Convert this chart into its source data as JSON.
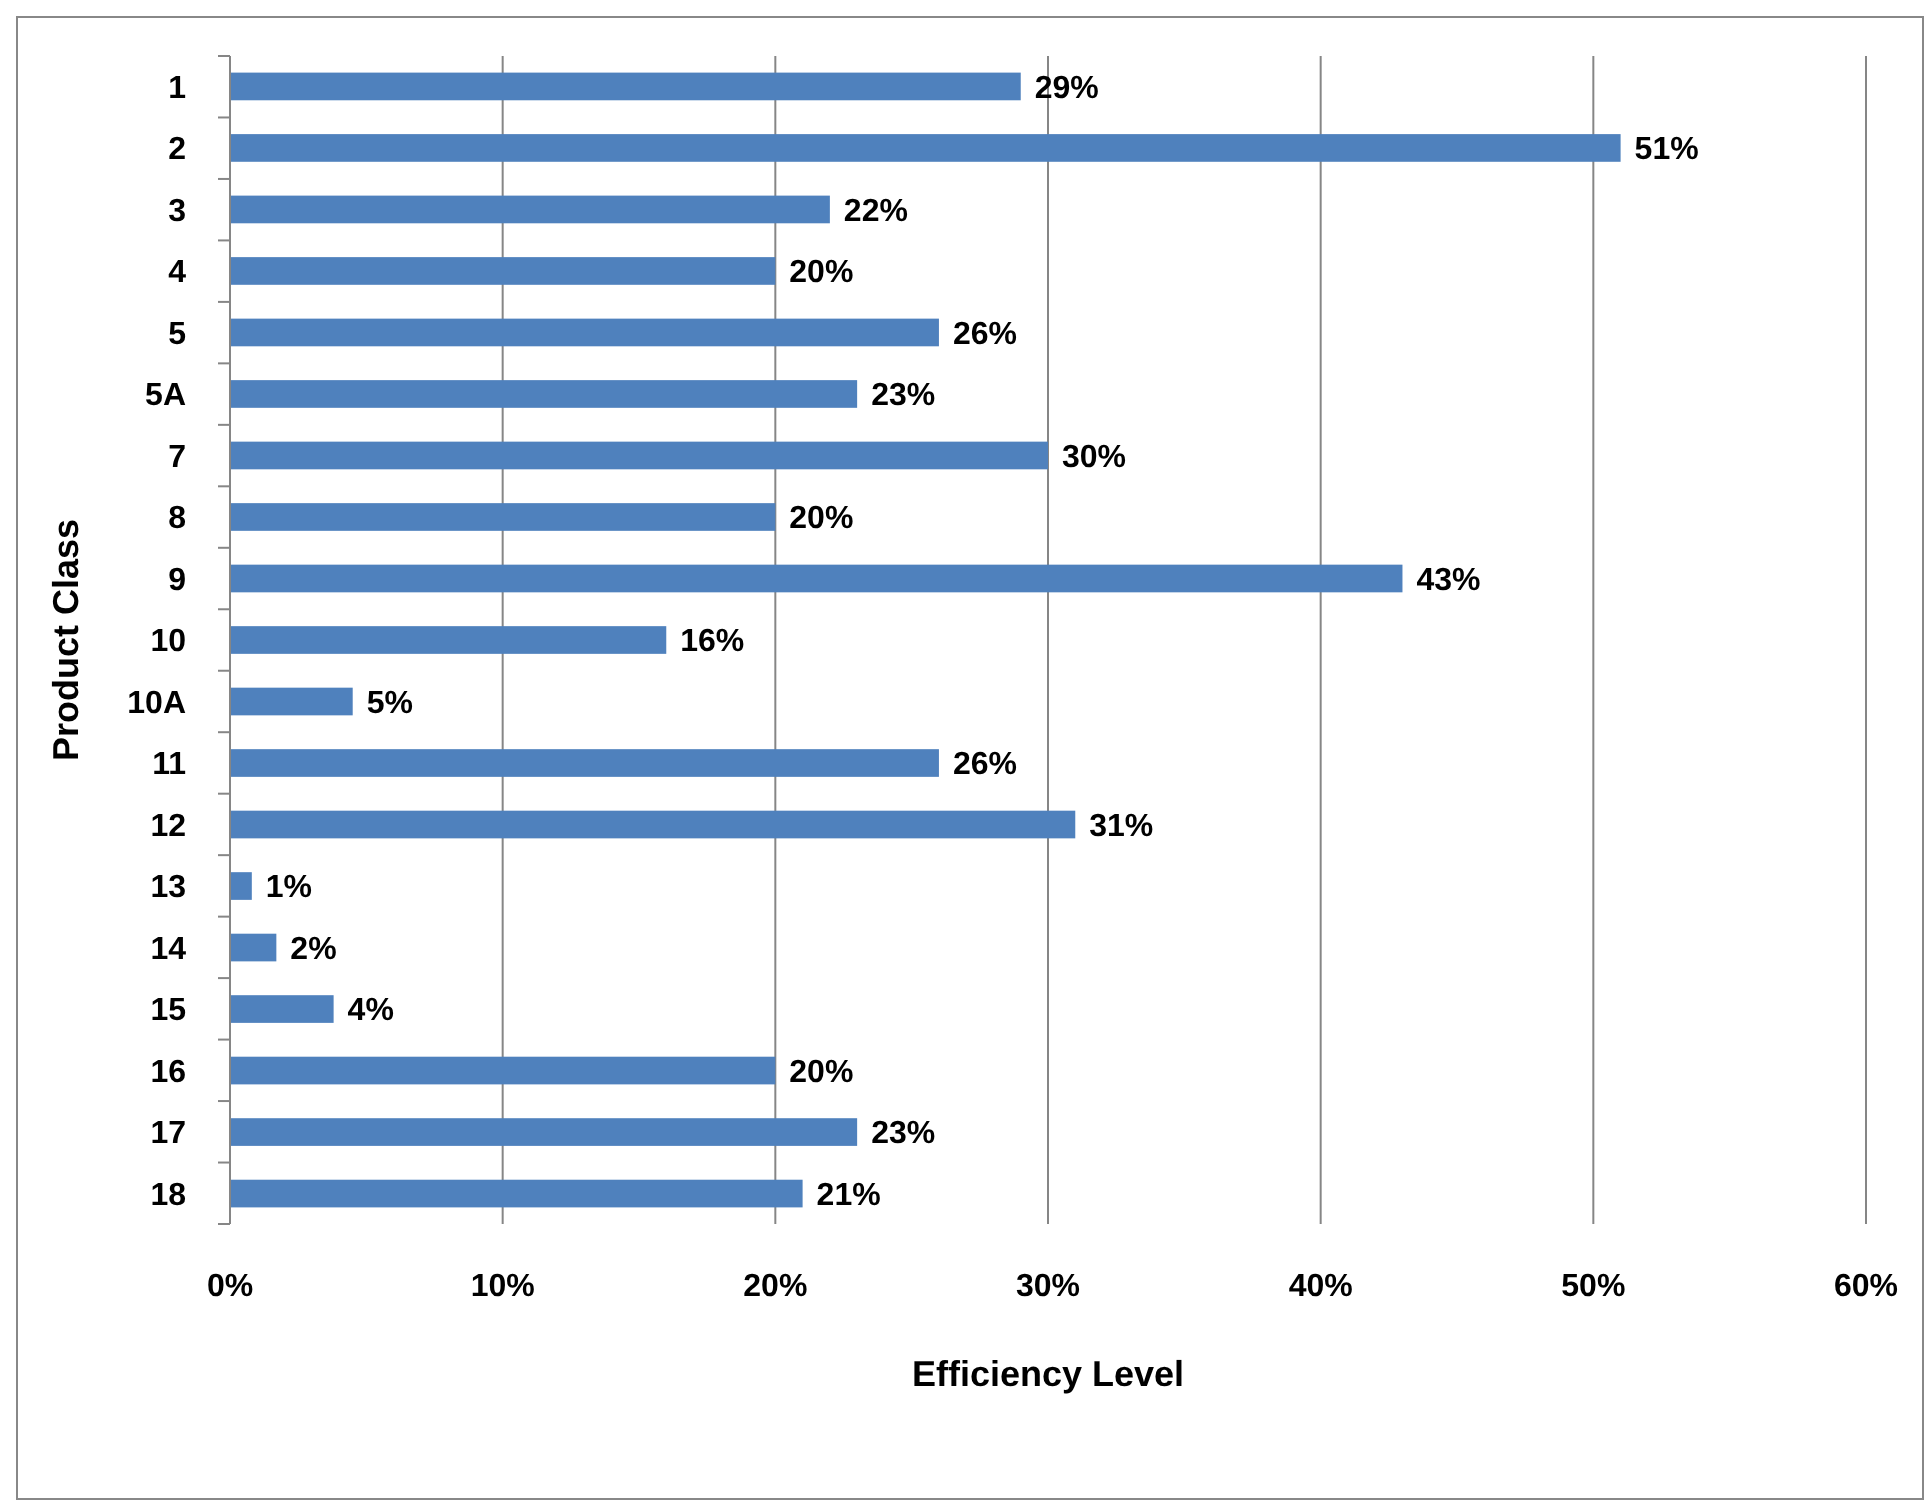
{
  "chart_data": {
    "type": "bar",
    "orientation": "horizontal",
    "xlabel": "Efficiency Level",
    "ylabel": "Product Class",
    "categories": [
      "1",
      "2",
      "3",
      "4",
      "5",
      "5A",
      "7",
      "8",
      "9",
      "10",
      "10A",
      "11",
      "12",
      "13",
      "14",
      "15",
      "16",
      "17",
      "18"
    ],
    "values": [
      29,
      51,
      22,
      20,
      26,
      23,
      30,
      20,
      43,
      16,
      4.5,
      26,
      31,
      0.8,
      1.7,
      3.8,
      20,
      23,
      21
    ],
    "value_labels": [
      "29%",
      "51%",
      "22%",
      "20%",
      "26%",
      "23%",
      "30%",
      "20%",
      "43%",
      "16%",
      "5%",
      "26%",
      "31%",
      "1%",
      "2%",
      "4%",
      "20%",
      "23%",
      "21%"
    ],
    "color": "#4f81bd",
    "xlim": [
      0,
      60
    ],
    "xticks": [
      {
        "value": 0,
        "label": "0%"
      },
      {
        "value": 10,
        "label": "10%"
      },
      {
        "value": 20,
        "label": "20%"
      },
      {
        "value": 30,
        "label": "30%"
      },
      {
        "value": 40,
        "label": "40%"
      },
      {
        "value": 50,
        "label": "50%"
      },
      {
        "value": 60,
        "label": "60%"
      }
    ],
    "grid": "x"
  }
}
